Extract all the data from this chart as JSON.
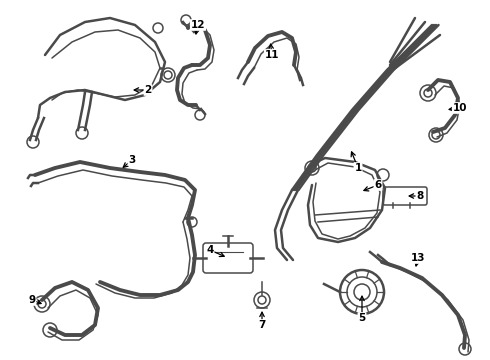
{
  "bg_color": "#ffffff",
  "line_color": "#4a4a4a",
  "label_color": "#000000",
  "lw_thick": 2.8,
  "lw_med": 1.8,
  "lw_thin": 1.1,
  "figw": 4.9,
  "figh": 3.6,
  "dpi": 100
}
